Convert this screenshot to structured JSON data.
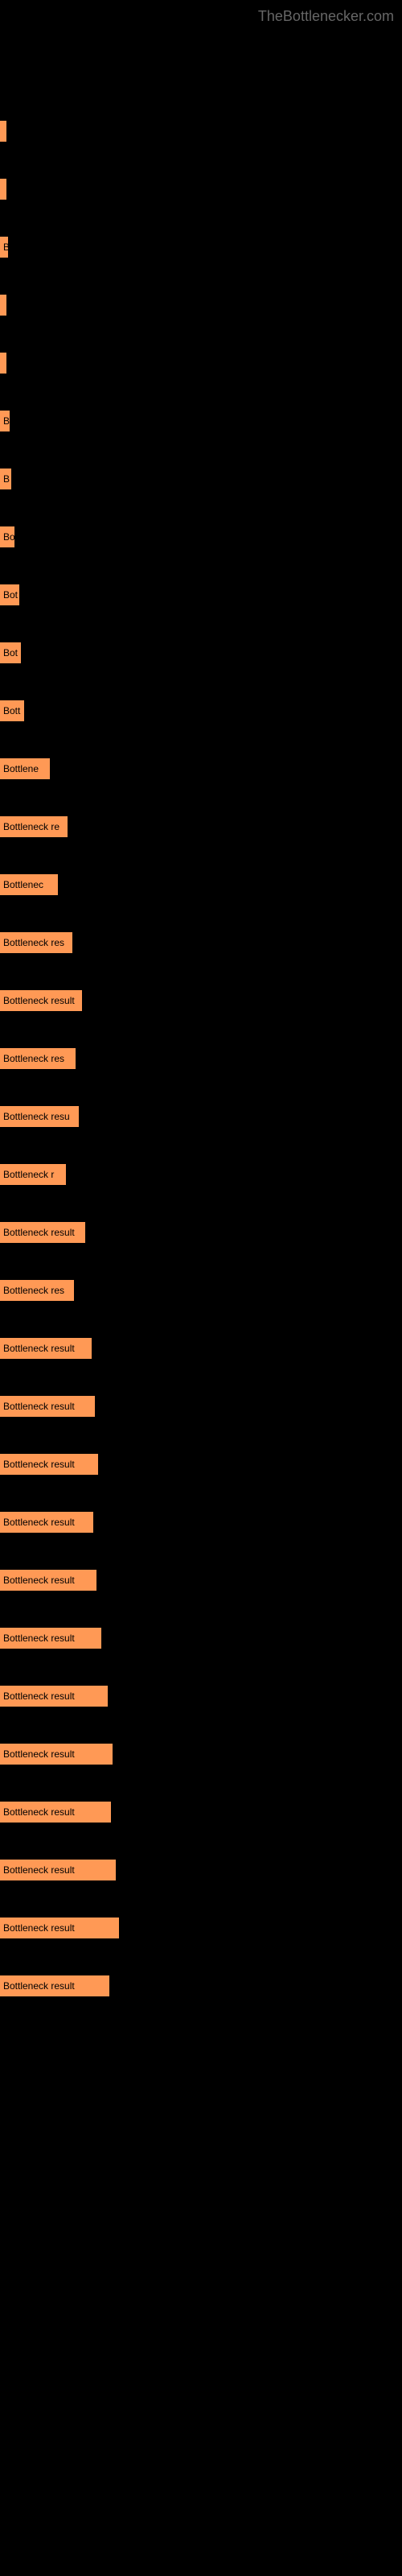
{
  "watermark": "TheBottlenecker.com",
  "chart": {
    "type": "bar",
    "background_color": "#000000",
    "bar_color": "#ff9955",
    "label_color": "#000000",
    "label_fontsize": 12,
    "max_width": 500,
    "bars": [
      {
        "label": "",
        "width": 8
      },
      {
        "label": "",
        "width": 8
      },
      {
        "label": "B",
        "width": 10
      },
      {
        "label": "",
        "width": 8
      },
      {
        "label": "",
        "width": 8
      },
      {
        "label": "B",
        "width": 12
      },
      {
        "label": "B",
        "width": 14
      },
      {
        "label": "Bo",
        "width": 18
      },
      {
        "label": "Bot",
        "width": 24
      },
      {
        "label": "Bot",
        "width": 26
      },
      {
        "label": "Bott",
        "width": 30
      },
      {
        "label": "Bottlene",
        "width": 62
      },
      {
        "label": "Bottleneck re",
        "width": 84
      },
      {
        "label": "Bottlenec",
        "width": 72
      },
      {
        "label": "Bottleneck res",
        "width": 90
      },
      {
        "label": "Bottleneck result",
        "width": 102
      },
      {
        "label": "Bottleneck res",
        "width": 94
      },
      {
        "label": "Bottleneck resu",
        "width": 98
      },
      {
        "label": "Bottleneck r",
        "width": 82
      },
      {
        "label": "Bottleneck result",
        "width": 106
      },
      {
        "label": "Bottleneck res",
        "width": 92
      },
      {
        "label": "Bottleneck result",
        "width": 114
      },
      {
        "label": "Bottleneck result",
        "width": 118
      },
      {
        "label": "Bottleneck result",
        "width": 122
      },
      {
        "label": "Bottleneck result",
        "width": 116
      },
      {
        "label": "Bottleneck result",
        "width": 120
      },
      {
        "label": "Bottleneck result",
        "width": 126
      },
      {
        "label": "Bottleneck result",
        "width": 134
      },
      {
        "label": "Bottleneck result",
        "width": 140
      },
      {
        "label": "Bottleneck result",
        "width": 138
      },
      {
        "label": "Bottleneck result",
        "width": 144
      },
      {
        "label": "Bottleneck result",
        "width": 148
      },
      {
        "label": "Bottleneck result",
        "width": 136
      }
    ]
  }
}
